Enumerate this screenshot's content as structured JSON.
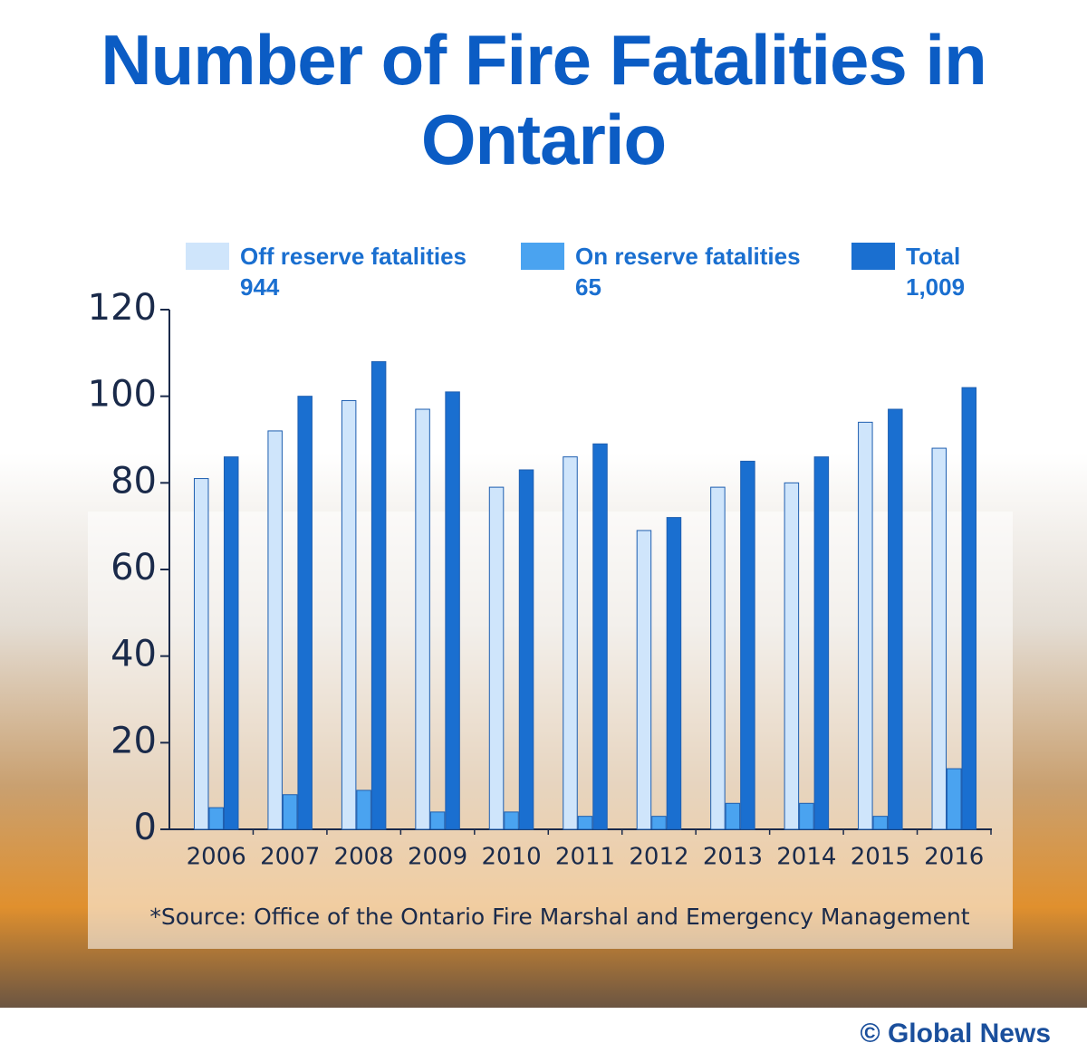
{
  "chart_data": {
    "type": "bar",
    "title": "Number of Fire Fatalities in Ontario",
    "categories": [
      "2006",
      "2007",
      "2008",
      "2009",
      "2010",
      "2011",
      "2012",
      "2013",
      "2014",
      "2015",
      "2016"
    ],
    "series": [
      {
        "name": "Off reserve fatalities",
        "total": 944,
        "color": "#cfe5fb",
        "values": [
          81,
          92,
          99,
          97,
          79,
          86,
          69,
          79,
          80,
          94,
          88
        ]
      },
      {
        "name": "On reserve fatalities",
        "total": 65,
        "color": "#4aa3f0",
        "values": [
          5,
          8,
          9,
          4,
          4,
          3,
          3,
          6,
          6,
          3,
          14
        ]
      },
      {
        "name": "Total",
        "total": {
          "value": 1009,
          "label": "1,009"
        },
        "color": "#1a6fd0",
        "values": [
          86,
          100,
          108,
          101,
          83,
          89,
          72,
          85,
          86,
          97,
          102
        ]
      }
    ],
    "ylim": [
      0,
      120
    ],
    "yticks": [
      0,
      20,
      40,
      60,
      80,
      100,
      120
    ],
    "source": "*Source: Office of the Ontario Fire Marshal and Emergency Management",
    "credit": "© Global News"
  }
}
